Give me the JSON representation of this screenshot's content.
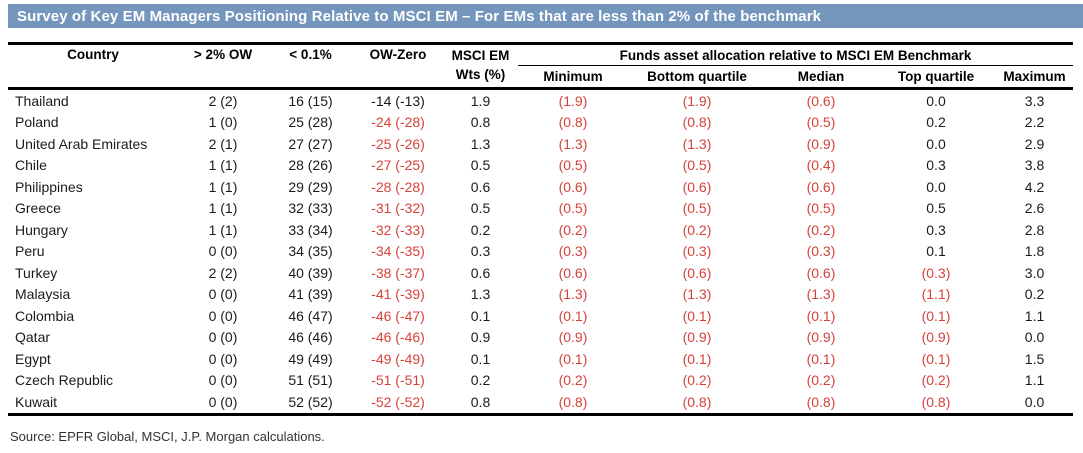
{
  "header": {
    "title": "Survey of Key EM Managers Positioning Relative to MSCI EM – For EMs that are less than 2% of the benchmark"
  },
  "footer": {
    "source": "Source: EPFR Global, MSCI, J.P. Morgan calculations."
  },
  "colors": {
    "title_bar_bg": "#7496BD",
    "title_text": "#FFFFFF",
    "negative_red": "#D6423C",
    "body_text": "#1B1B1B",
    "border_black": "#000000"
  },
  "table": {
    "headers": {
      "country": "Country",
      "gt2_ow": "> 2% OW",
      "lt_01": "< 0.1%",
      "ow_zero": "OW-Zero",
      "msci_em_line1": "MSCI EM",
      "msci_em_line2": "Wts (%)",
      "group": "Funds asset allocation relative to MSCI EM Benchmark",
      "minimum": "Minimum",
      "bottom_quartile": "Bottom quartile",
      "median": "Median",
      "top_quartile": "Top quartile",
      "maximum": "Maximum"
    },
    "rows": [
      {
        "country": "Thailand",
        "values": [
          "2 (2)",
          "16 (15)",
          "-14 (-13)",
          "1.9",
          "(1.9)",
          "(1.9)",
          "(0.6)",
          "0.0",
          "3.3"
        ],
        "neg": [
          false,
          false,
          false,
          false,
          true,
          true,
          true,
          false,
          false
        ]
      },
      {
        "country": "Poland",
        "values": [
          "1 (0)",
          "25 (28)",
          "-24 (-28)",
          "0.8",
          "(0.8)",
          "(0.8)",
          "(0.5)",
          "0.2",
          "2.2"
        ],
        "neg": [
          false,
          false,
          true,
          false,
          true,
          true,
          true,
          false,
          false
        ]
      },
      {
        "country": "United Arab Emirates",
        "values": [
          "2 (1)",
          "27 (27)",
          "-25 (-26)",
          "1.3",
          "(1.3)",
          "(1.3)",
          "(0.9)",
          "0.0",
          "2.9"
        ],
        "neg": [
          false,
          false,
          true,
          false,
          true,
          true,
          true,
          false,
          false
        ]
      },
      {
        "country": "Chile",
        "values": [
          "1 (1)",
          "28 (26)",
          "-27 (-25)",
          "0.5",
          "(0.5)",
          "(0.5)",
          "(0.4)",
          "0.3",
          "3.8"
        ],
        "neg": [
          false,
          false,
          true,
          false,
          true,
          true,
          true,
          false,
          false
        ]
      },
      {
        "country": "Philippines",
        "values": [
          "1 (1)",
          "29 (29)",
          "-28 (-28)",
          "0.6",
          "(0.6)",
          "(0.6)",
          "(0.6)",
          "0.0",
          "4.2"
        ],
        "neg": [
          false,
          false,
          true,
          false,
          true,
          true,
          true,
          false,
          false
        ]
      },
      {
        "country": "Greece",
        "values": [
          "1 (1)",
          "32 (33)",
          "-31 (-32)",
          "0.5",
          "(0.5)",
          "(0.5)",
          "(0.5)",
          "0.5",
          "2.6"
        ],
        "neg": [
          false,
          false,
          true,
          false,
          true,
          true,
          true,
          false,
          false
        ]
      },
      {
        "country": "Hungary",
        "values": [
          "1 (1)",
          "33 (34)",
          "-32 (-33)",
          "0.2",
          "(0.2)",
          "(0.2)",
          "(0.2)",
          "0.3",
          "2.8"
        ],
        "neg": [
          false,
          false,
          true,
          false,
          true,
          true,
          true,
          false,
          false
        ]
      },
      {
        "country": "Peru",
        "values": [
          "0 (0)",
          "34 (35)",
          "-34 (-35)",
          "0.3",
          "(0.3)",
          "(0.3)",
          "(0.3)",
          "0.1",
          "1.8"
        ],
        "neg": [
          false,
          false,
          true,
          false,
          true,
          true,
          true,
          false,
          false
        ]
      },
      {
        "country": "Turkey",
        "values": [
          "2 (2)",
          "40 (39)",
          "-38 (-37)",
          "0.6",
          "(0.6)",
          "(0.6)",
          "(0.6)",
          "(0.3)",
          "3.0"
        ],
        "neg": [
          false,
          false,
          true,
          false,
          true,
          true,
          true,
          true,
          false
        ]
      },
      {
        "country": "Malaysia",
        "values": [
          "0 (0)",
          "41 (39)",
          "-41 (-39)",
          "1.3",
          "(1.3)",
          "(1.3)",
          "(1.3)",
          "(1.1)",
          "0.2"
        ],
        "neg": [
          false,
          false,
          true,
          false,
          true,
          true,
          true,
          true,
          false
        ]
      },
      {
        "country": "Colombia",
        "values": [
          "0 (0)",
          "46 (47)",
          "-46 (-47)",
          "0.1",
          "(0.1)",
          "(0.1)",
          "(0.1)",
          "(0.1)",
          "1.1"
        ],
        "neg": [
          false,
          false,
          true,
          false,
          true,
          true,
          true,
          true,
          false
        ]
      },
      {
        "country": "Qatar",
        "values": [
          "0 (0)",
          "46 (46)",
          "-46 (-46)",
          "0.9",
          "(0.9)",
          "(0.9)",
          "(0.9)",
          "(0.9)",
          "0.0"
        ],
        "neg": [
          false,
          false,
          true,
          false,
          true,
          true,
          true,
          true,
          false
        ]
      },
      {
        "country": "Egypt",
        "values": [
          "0 (0)",
          "49 (49)",
          "-49 (-49)",
          "0.1",
          "(0.1)",
          "(0.1)",
          "(0.1)",
          "(0.1)",
          "1.5"
        ],
        "neg": [
          false,
          false,
          true,
          false,
          true,
          true,
          true,
          true,
          false
        ]
      },
      {
        "country": "Czech Republic",
        "values": [
          "0 (0)",
          "51 (51)",
          "-51 (-51)",
          "0.2",
          "(0.2)",
          "(0.2)",
          "(0.2)",
          "(0.2)",
          "1.1"
        ],
        "neg": [
          false,
          false,
          true,
          false,
          true,
          true,
          true,
          true,
          false
        ]
      },
      {
        "country": "Kuwait",
        "values": [
          "0 (0)",
          "52 (52)",
          "-52 (-52)",
          "0.8",
          "(0.8)",
          "(0.8)",
          "(0.8)",
          "(0.8)",
          "0.0"
        ],
        "neg": [
          false,
          false,
          true,
          false,
          true,
          true,
          true,
          true,
          false
        ]
      }
    ]
  }
}
